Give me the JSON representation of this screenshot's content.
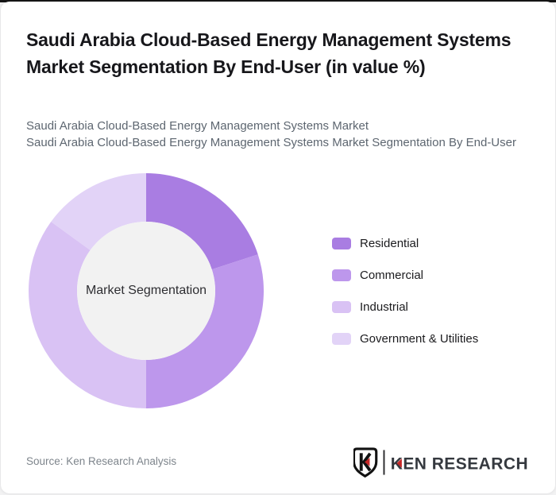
{
  "page": {
    "title": "Saudi Arabia Cloud-Based Energy Management Systems Market Segmentation By End-User (in value %)",
    "subtitle_line1": "Saudi Arabia Cloud-Based Energy Management Systems Market",
    "subtitle_line2": "Saudi Arabia Cloud-Based Energy Management Systems Market Segmentation By End-User"
  },
  "chart_data": {
    "type": "pie",
    "variant": "donut",
    "title": "Saudi Arabia Cloud-Based Energy Management Systems Market Segmentation By End-User (in value %)",
    "center_label": "Market Segmentation",
    "unit": "percent of value",
    "start_angle_deg": 0,
    "direction": "clockwise",
    "legend_position": "right",
    "hole_color": "#f2f2f2",
    "categories": [
      "Residential",
      "Commercial",
      "Industrial",
      "Government & Utilities"
    ],
    "values": [
      20,
      30,
      35,
      15
    ],
    "series": [
      {
        "name": "Residential",
        "value": 20,
        "color": "#a97de2"
      },
      {
        "name": "Commercial",
        "value": 30,
        "color": "#bd97ec"
      },
      {
        "name": "Industrial",
        "value": 35,
        "color": "#d9c2f4"
      },
      {
        "name": "Government & Utilities",
        "value": 15,
        "color": "#e2d3f7"
      }
    ]
  },
  "footer": {
    "source": "Source: Ken Research Analysis",
    "logo_text": "KEN RESEARCH"
  },
  "colors": {
    "accent_red": "#c62828",
    "logo_text_color": "#35393f",
    "title_color": "#17171b",
    "subtitle_color": "#5d6670"
  }
}
